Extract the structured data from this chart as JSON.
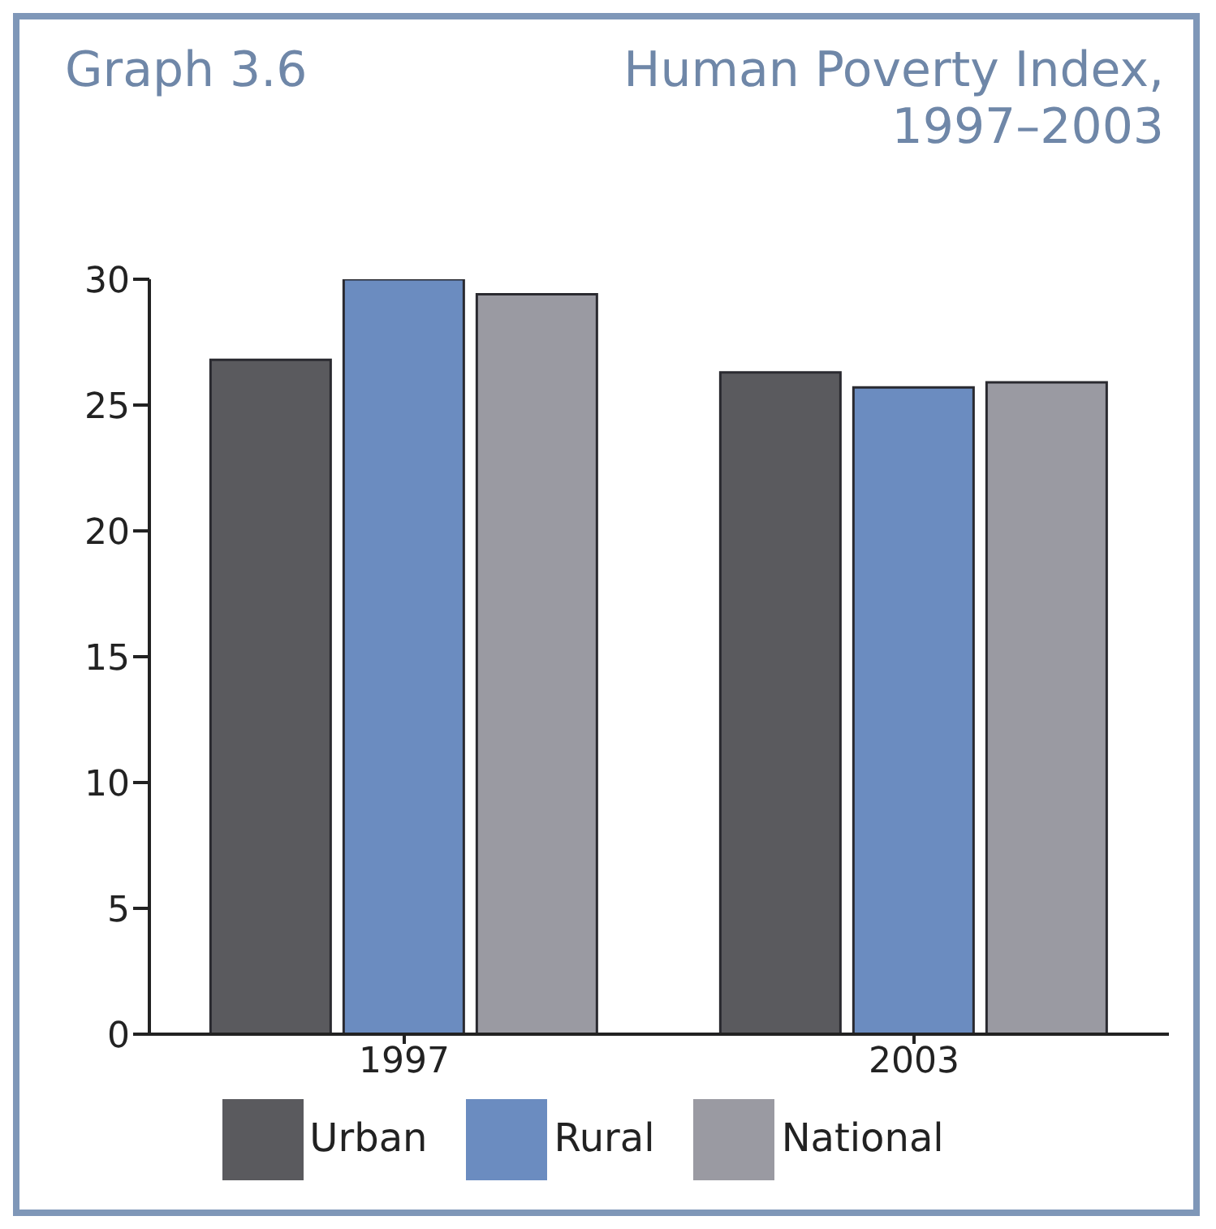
{
  "chart_data": {
    "type": "bar",
    "subtitle": "Graph 3.6",
    "title": "Human Poverty Index, 1997–2003",
    "categories": [
      "1997",
      "2003"
    ],
    "series": [
      {
        "name": "Urban",
        "color": "#5a5a5e",
        "values": [
          26.8,
          26.3
        ]
      },
      {
        "name": "Rural",
        "color": "#6b8cc0",
        "values": [
          30,
          25.7
        ]
      },
      {
        "name": "National",
        "color": "#9a9aa2",
        "values": [
          29.4,
          25.9
        ]
      }
    ],
    "ylim": [
      0,
      30
    ],
    "yticks": [
      0,
      5,
      10,
      15,
      20,
      25,
      30
    ],
    "grid": false,
    "legend": "bottom"
  }
}
